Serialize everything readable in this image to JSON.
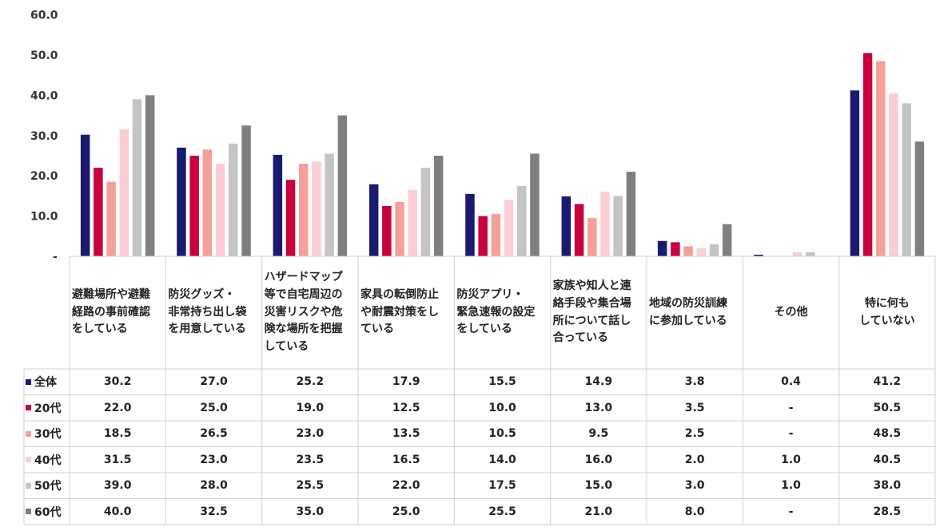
{
  "chart_data": {
    "type": "bar",
    "title": "",
    "ylim": [
      0,
      60
    ],
    "yticks": [
      "-",
      "10.0",
      "20.0",
      "30.0",
      "40.0",
      "50.0",
      "60.0"
    ],
    "grid": false,
    "legend": "table-left",
    "categories": [
      "避難場所や避難\n経路の事前確認\nをしている",
      "防災グッズ・\n非常持ち出し袋\nを用意している",
      "ハザードマップ\n等で自宅周辺の\n災害リスクや危\n険な場所を把握\nしている",
      "家具の転倒防止\nや耐震対策をし\nている",
      "防災アプリ・\n緊急速報の設定\nをしている",
      "家族や知人と連\n絡手段や集合場\n所について話し\n合っている",
      "地域の防災訓練\nに参加している",
      "その他",
      "特に何も\nしていない"
    ],
    "category_align": [
      "left",
      "left",
      "left",
      "left",
      "left",
      "left",
      "left",
      "center",
      "center"
    ],
    "series": [
      {
        "name": "全体",
        "color": "#1b1a6e",
        "values": [
          30.2,
          27.0,
          25.2,
          17.9,
          15.5,
          14.9,
          3.8,
          0.4,
          41.2
        ],
        "labels": [
          "30.2",
          "27.0",
          "25.2",
          "17.9",
          "15.5",
          "14.9",
          "3.8",
          "0.4",
          "41.2"
        ]
      },
      {
        "name": "20代",
        "color": "#c8003c",
        "values": [
          22.0,
          25.0,
          19.0,
          12.5,
          10.0,
          13.0,
          3.5,
          0,
          50.5
        ],
        "labels": [
          "22.0",
          "25.0",
          "19.0",
          "12.5",
          "10.0",
          "13.0",
          "3.5",
          "-",
          "50.5"
        ]
      },
      {
        "name": "30代",
        "color": "#f4a09a",
        "values": [
          18.5,
          26.5,
          23.0,
          13.5,
          10.5,
          9.5,
          2.5,
          0,
          48.5
        ],
        "labels": [
          "18.5",
          "26.5",
          "23.0",
          "13.5",
          "10.5",
          "9.5",
          "2.5",
          "-",
          "48.5"
        ]
      },
      {
        "name": "40代",
        "color": "#fbcdd6",
        "values": [
          31.5,
          23.0,
          23.5,
          16.5,
          14.0,
          16.0,
          2.0,
          1.0,
          40.5
        ],
        "labels": [
          "31.5",
          "23.0",
          "23.5",
          "16.5",
          "14.0",
          "16.0",
          "2.0",
          "1.0",
          "40.5"
        ]
      },
      {
        "name": "50代",
        "color": "#c4c4c4",
        "values": [
          39.0,
          28.0,
          25.5,
          22.0,
          17.5,
          15.0,
          3.0,
          1.0,
          38.0
        ],
        "labels": [
          "39.0",
          "28.0",
          "25.5",
          "22.0",
          "17.5",
          "15.0",
          "3.0",
          "1.0",
          "38.0"
        ]
      },
      {
        "name": "60代",
        "color": "#7f7f7f",
        "values": [
          40.0,
          32.5,
          35.0,
          25.0,
          25.5,
          21.0,
          8.0,
          0,
          28.5
        ],
        "labels": [
          "40.0",
          "32.5",
          "35.0",
          "25.0",
          "25.5",
          "21.0",
          "8.0",
          "-",
          "28.5"
        ]
      }
    ]
  }
}
